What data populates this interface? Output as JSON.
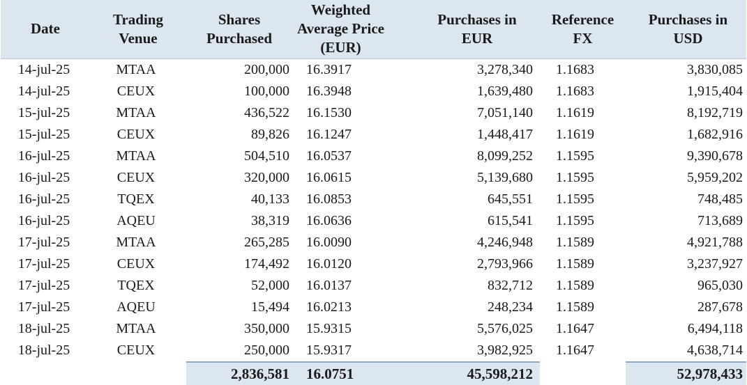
{
  "headers": {
    "date": "Date",
    "venue_line1": "Trading",
    "venue_line2": "Venue",
    "shares_line1": "Shares",
    "shares_line2": "Purchased",
    "price_line1": "Weighted",
    "price_line2": "Average Price",
    "price_line3": "(EUR)",
    "eur_line1": "Purchases in",
    "eur_line2": "EUR",
    "fx_line1": "Reference",
    "fx_line2": "FX",
    "usd_line1": "Purchases in",
    "usd_line2": "USD"
  },
  "rows": [
    {
      "date": "14-jul-25",
      "venue": "MTAA",
      "shares": "200,000",
      "price": "16.3917",
      "eur": "3,278,340",
      "fx": "1.1683",
      "usd": "3,830,085"
    },
    {
      "date": "14-jul-25",
      "venue": "CEUX",
      "shares": "100,000",
      "price": "16.3948",
      "eur": "1,639,480",
      "fx": "1.1683",
      "usd": "1,915,404"
    },
    {
      "date": "15-jul-25",
      "venue": "MTAA",
      "shares": "436,522",
      "price": "16.1530",
      "eur": "7,051,140",
      "fx": "1.1619",
      "usd": "8,192,719"
    },
    {
      "date": "15-jul-25",
      "venue": "CEUX",
      "shares": "89,826",
      "price": "16.1247",
      "eur": "1,448,417",
      "fx": "1.1619",
      "usd": "1,682,916"
    },
    {
      "date": "16-jul-25",
      "venue": "MTAA",
      "shares": "504,510",
      "price": "16.0537",
      "eur": "8,099,252",
      "fx": "1.1595",
      "usd": "9,390,678"
    },
    {
      "date": "16-jul-25",
      "venue": "CEUX",
      "shares": "320,000",
      "price": "16.0615",
      "eur": "5,139,680",
      "fx": "1.1595",
      "usd": "5,959,202"
    },
    {
      "date": "16-jul-25",
      "venue": "TQEX",
      "shares": "40,133",
      "price": "16.0853",
      "eur": "645,551",
      "fx": "1.1595",
      "usd": "748,485"
    },
    {
      "date": "16-jul-25",
      "venue": "AQEU",
      "shares": "38,319",
      "price": "16.0636",
      "eur": "615,541",
      "fx": "1.1595",
      "usd": "713,689"
    },
    {
      "date": "17-jul-25",
      "venue": "MTAA",
      "shares": "265,285",
      "price": "16.0090",
      "eur": "4,246,948",
      "fx": "1.1589",
      "usd": "4,921,788"
    },
    {
      "date": "17-jul-25",
      "venue": "CEUX",
      "shares": "174,492",
      "price": "16.0120",
      "eur": "2,793,966",
      "fx": "1.1589",
      "usd": "3,237,927"
    },
    {
      "date": "17-jul-25",
      "venue": "TQEX",
      "shares": "52,000",
      "price": "16.0137",
      "eur": "832,712",
      "fx": "1.1589",
      "usd": "965,030"
    },
    {
      "date": "17-jul-25",
      "venue": "AQEU",
      "shares": "15,494",
      "price": "16.0213",
      "eur": "248,234",
      "fx": "1.1589",
      "usd": "287,678"
    },
    {
      "date": "18-jul-25",
      "venue": "MTAA",
      "shares": "350,000",
      "price": "15.9315",
      "eur": "5,576,025",
      "fx": "1.1647",
      "usd": "6,494,118"
    },
    {
      "date": "18-jul-25",
      "venue": "CEUX",
      "shares": "250,000",
      "price": "15.9317",
      "eur": "3,982,925",
      "fx": "1.1647",
      "usd": "4,638,714"
    }
  ],
  "totals": {
    "shares": "2,836,581",
    "price": "16.0751",
    "eur": "45,598,212",
    "usd": "52,978,433"
  },
  "colors": {
    "header_fill": "#dce6f1",
    "total_fill": "#dce6f1",
    "text": "#1a1a1a"
  }
}
